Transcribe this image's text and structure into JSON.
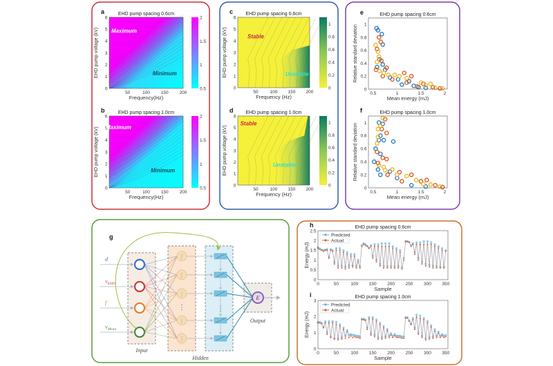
{
  "colors": {
    "frame_ab": "#c8303a",
    "frame_cd": "#2f5fa8",
    "frame_ef": "#7a3fa0",
    "frame_g": "#5a9a3a",
    "frame_hi": "#c8702a",
    "series_blue": "#1f77c0",
    "series_red": "#d95319",
    "series_yellow": "#edb120",
    "predicted": "#5ab4e0",
    "actual": "#e0603a"
  },
  "network": {
    "label": "g",
    "inputs": [
      {
        "symbol": "d",
        "sub": "",
        "color": "#3a6fc8"
      },
      {
        "symbol": "v",
        "sub": "EHD",
        "color": "#c83a3a"
      },
      {
        "symbol": "f",
        "sub": "",
        "color": "#e8802a"
      },
      {
        "symbol": "v",
        "sub": "Mean",
        "color": "#4a8a3a"
      }
    ],
    "input_label": "Input",
    "hidden_label": "Hidden",
    "output_label": "Output",
    "output_symbol": "E",
    "hidden_dots": "⋮"
  },
  "chart_data": [
    {
      "id": "a",
      "label": "a",
      "type": "contour",
      "title": "EHD pump spacing 0.6cm",
      "xlabel": "Frequency(Hz)",
      "ylabel": "EHD pump voltage (kV)",
      "xlim": [
        0,
        200
      ],
      "ylim": [
        0,
        6
      ],
      "xticks": [
        50,
        100,
        150,
        200
      ],
      "yticks": [
        0,
        1,
        2,
        3,
        4,
        5,
        6
      ],
      "colorbar": {
        "range": [
          0.5,
          2
        ],
        "ticks": [
          0.5,
          1,
          1.5,
          2
        ],
        "colors": [
          "#00ffff",
          "#ff00ff"
        ]
      },
      "annotations": [
        {
          "text": "Maximum",
          "x": 40,
          "y": 4.7,
          "color": "#ffffff"
        },
        {
          "text": "Minimum",
          "x": 150,
          "y": 1.1,
          "color": "#1a4a5a"
        }
      ]
    },
    {
      "id": "b",
      "label": "b",
      "type": "contour",
      "title": "EHD pump spacing 1.0cm",
      "xlabel": "Frequency(Hz)",
      "ylabel": "EHD pump voltage (kV)",
      "xlim": [
        0,
        200
      ],
      "ylim": [
        0,
        6
      ],
      "xticks": [
        50,
        100,
        150,
        200
      ],
      "yticks": [
        0,
        1,
        2,
        3,
        4,
        5,
        6
      ],
      "colorbar": {
        "range": [
          0.5,
          2
        ],
        "ticks": [
          0.5,
          1,
          1.5,
          2
        ],
        "colors": [
          "#00ffff",
          "#ff00ff"
        ]
      },
      "annotations": [
        {
          "text": "Maximum",
          "x": 25,
          "y": 4.9,
          "color": "#ffffff"
        },
        {
          "text": "Minimum",
          "x": 145,
          "y": 1.3,
          "color": "#1a4a5a"
        }
      ]
    },
    {
      "id": "c",
      "label": "c",
      "type": "contour",
      "title": "EHD pump spacing 0.6cm",
      "xlabel": "Frequency (Hz)",
      "ylabel": "EHD pump voltage (kV)",
      "xlim": [
        0,
        200
      ],
      "ylim": [
        0,
        6
      ],
      "xticks": [
        50,
        100,
        150,
        200
      ],
      "yticks": [
        0,
        1,
        2,
        3,
        4,
        5,
        6
      ],
      "colorbar": {
        "range": [
          0,
          1.1
        ],
        "ticks": [
          0,
          0.2,
          0.4,
          0.6,
          0.8,
          1
        ],
        "colors": [
          "#f5f03a",
          "#0b7a5e"
        ]
      },
      "annotations": [
        {
          "text": "Stable",
          "x": 50,
          "y": 4.2,
          "color": "#c8283a"
        },
        {
          "text": "Unstable",
          "x": 165,
          "y": 1.0,
          "color": "#30e0d0"
        }
      ]
    },
    {
      "id": "d",
      "label": "d",
      "type": "contour",
      "title": "EHD pump spacing 1.0cm",
      "xlabel": "Frequency (Hz)",
      "ylabel": "EHD pump voltage (kV)",
      "xlim": [
        0,
        200
      ],
      "ylim": [
        0,
        6
      ],
      "xticks": [
        50,
        100,
        150,
        200
      ],
      "yticks": [
        0,
        1,
        2,
        3,
        4,
        5,
        6
      ],
      "colorbar": {
        "range": [
          0,
          1.1
        ],
        "ticks": [
          0,
          0.2,
          0.4,
          0.6,
          0.8,
          1
        ],
        "colors": [
          "#f5f03a",
          "#0b7a5e"
        ]
      },
      "annotations": [
        {
          "text": "Stable",
          "x": 30,
          "y": 5.2,
          "color": "#c8283a"
        },
        {
          "text": "Unstable",
          "x": 130,
          "y": 1.6,
          "color": "#30e0d0"
        }
      ]
    },
    {
      "id": "e",
      "label": "e",
      "type": "scatter",
      "title": "EHD pump spacing 0.6cm",
      "xlabel": "Mean energy (mJ)",
      "ylabel": "Relative standard deviation",
      "xlim": [
        0.4,
        2.05
      ],
      "ylim": [
        0,
        1.1
      ],
      "xticks": [
        0.5,
        1,
        1.5,
        2
      ],
      "yticks": [
        0,
        0.2,
        0.4,
        0.6,
        0.8,
        1
      ],
      "series": [
        {
          "color": "#1f77c0",
          "points": [
            [
              0.57,
              0.94
            ],
            [
              0.6,
              0.91
            ],
            [
              0.68,
              0.85
            ],
            [
              0.7,
              0.69
            ],
            [
              0.63,
              0.46
            ],
            [
              0.7,
              0.38
            ],
            [
              0.58,
              0.34
            ],
            [
              0.75,
              0.3
            ],
            [
              0.85,
              0.18
            ],
            [
              1.02,
              0.15
            ],
            [
              1.1,
              0.07
            ],
            [
              1.25,
              0.12
            ],
            [
              1.35,
              0.05
            ],
            [
              1.45,
              0.03
            ],
            [
              1.6,
              0.02
            ]
          ]
        },
        {
          "color": "#d95319",
          "points": [
            [
              0.62,
              0.8
            ],
            [
              0.66,
              0.73
            ],
            [
              0.58,
              0.62
            ],
            [
              0.67,
              0.44
            ],
            [
              0.56,
              0.3
            ],
            [
              0.7,
              0.2
            ],
            [
              0.78,
              0.33
            ],
            [
              0.9,
              0.15
            ],
            [
              1.15,
              0.25
            ],
            [
              1.2,
              0.1
            ],
            [
              1.3,
              0.2
            ],
            [
              1.42,
              0.04
            ],
            [
              1.55,
              0.08
            ],
            [
              1.75,
              0.03
            ],
            [
              1.9,
              0.01
            ]
          ]
        },
        {
          "color": "#edb120",
          "points": [
            [
              0.55,
              0.68
            ],
            [
              0.6,
              0.58
            ],
            [
              0.62,
              0.5
            ],
            [
              0.58,
              0.42
            ],
            [
              0.63,
              0.28
            ],
            [
              0.72,
              0.25
            ],
            [
              0.82,
              0.22
            ],
            [
              0.95,
              0.22
            ],
            [
              1.05,
              0.2
            ],
            [
              1.2,
              0.17
            ],
            [
              1.5,
              0.1
            ],
            [
              1.6,
              0.06
            ],
            [
              1.7,
              0.08
            ],
            [
              1.8,
              0.02
            ],
            [
              1.95,
              0.01
            ]
          ]
        }
      ]
    },
    {
      "id": "f",
      "label": "f",
      "type": "scatter",
      "title": "EHD pump spacing 1.0cm",
      "xlabel": "Mean energy (mJ)",
      "ylabel": "Relative standard deviation",
      "xlim": [
        0.4,
        2.05
      ],
      "ylim": [
        0,
        1.1
      ],
      "xticks": [
        0.5,
        1,
        1.5,
        2
      ],
      "yticks": [
        0,
        0.2,
        0.4,
        0.6,
        0.8,
        1
      ],
      "series": [
        {
          "color": "#1f77c0",
          "points": [
            [
              0.62,
              1.0
            ],
            [
              0.7,
              0.98
            ],
            [
              0.65,
              0.8
            ],
            [
              0.62,
              0.73
            ],
            [
              0.72,
              0.73
            ],
            [
              0.92,
              0.71
            ],
            [
              0.55,
              0.6
            ],
            [
              0.65,
              0.52
            ],
            [
              0.52,
              0.4
            ],
            [
              0.6,
              0.28
            ],
            [
              0.65,
              0.2
            ],
            [
              0.85,
              0.25
            ],
            [
              1.0,
              0.15
            ],
            [
              1.3,
              0.04
            ],
            [
              1.6,
              0.02
            ]
          ]
        },
        {
          "color": "#d95319",
          "points": [
            [
              0.75,
              1.05
            ],
            [
              0.68,
              0.9
            ],
            [
              0.78,
              0.84
            ],
            [
              0.58,
              0.55
            ],
            [
              0.7,
              0.46
            ],
            [
              0.78,
              0.44
            ],
            [
              0.6,
              0.38
            ],
            [
              0.8,
              0.2
            ],
            [
              1.05,
              0.24
            ],
            [
              1.1,
              0.1
            ],
            [
              1.3,
              0.2
            ],
            [
              1.5,
              0.1
            ],
            [
              1.62,
              0.12
            ],
            [
              1.8,
              0.04
            ],
            [
              1.95,
              0.01
            ]
          ]
        },
        {
          "color": "#edb120",
          "points": [
            [
              0.7,
              1.07
            ],
            [
              0.65,
              0.95
            ],
            [
              0.6,
              0.9
            ],
            [
              0.58,
              0.68
            ],
            [
              0.6,
              0.78
            ],
            [
              0.62,
              0.35
            ],
            [
              0.72,
              0.32
            ],
            [
              0.75,
              0.27
            ],
            [
              0.9,
              0.28
            ],
            [
              1.0,
              0.2
            ],
            [
              1.2,
              0.18
            ],
            [
              1.4,
              0.12
            ],
            [
              1.55,
              0.06
            ],
            [
              1.7,
              0.05
            ],
            [
              1.9,
              0.02
            ]
          ]
        }
      ]
    },
    {
      "id": "h",
      "label": "h",
      "type": "line",
      "title": "EHD pump spacing 0.6cm",
      "xlabel": "Sample",
      "ylabel": "Energy (mJ)",
      "xlim": [
        0,
        356
      ],
      "ylim": [
        0,
        2.5
      ],
      "xticks": [
        0,
        50,
        100,
        150,
        200,
        250,
        300,
        350
      ],
      "yticks": [
        0,
        0.5,
        1,
        1.5,
        2,
        2.5
      ],
      "legend": {
        "position": "top-left"
      },
      "x_step": 5,
      "series": [
        {
          "name": "Predicted",
          "color": "#5ab4e0",
          "values": [
            1.65,
            1.58,
            1.52,
            1.5,
            1.52,
            1.55,
            1.15,
            1.55,
            1.5,
            0.9,
            1.6,
            0.7,
            1.6,
            0.7,
            1.5,
            0.65,
            1.4,
            0.7,
            1.3,
            0.72,
            1.3,
            0.7,
            1.0,
            0.68,
            1.75,
            1.85,
            1.8,
            1.72,
            1.62,
            1.75,
            1.2,
            1.8,
            1.0,
            1.8,
            0.8,
            1.85,
            0.7,
            1.85,
            0.68,
            1.85,
            0.68,
            1.7,
            0.68,
            1.6,
            0.68,
            1.5,
            0.62,
            1.1,
            1.95,
            1.95,
            1.92,
            1.75,
            1.85,
            1.4,
            1.9,
            1.1,
            1.9,
            0.9,
            1.95,
            0.8,
            1.95,
            0.75,
            1.9,
            0.7,
            1.8,
            0.68,
            1.7,
            0.65,
            1.6,
            0.65,
            1.5
          ]
        },
        {
          "name": "Actual",
          "color": "#e0603a",
          "values": [
            1.6,
            1.55,
            1.5,
            1.45,
            1.5,
            1.5,
            1.1,
            1.5,
            1.45,
            0.8,
            1.5,
            0.6,
            1.5,
            0.6,
            1.4,
            0.55,
            1.3,
            0.6,
            1.2,
            0.65,
            1.2,
            0.6,
            0.9,
            0.6,
            1.7,
            1.8,
            1.75,
            1.7,
            1.6,
            1.7,
            1.1,
            1.7,
            0.9,
            1.7,
            0.7,
            1.7,
            0.6,
            1.7,
            0.6,
            1.7,
            0.6,
            1.6,
            0.6,
            1.5,
            0.6,
            1.4,
            0.55,
            1.0,
            1.95,
            1.95,
            1.9,
            1.7,
            1.8,
            1.3,
            1.8,
            1.0,
            1.8,
            0.8,
            1.8,
            0.7,
            1.8,
            0.65,
            1.8,
            0.6,
            1.7,
            0.6,
            1.6,
            0.6,
            1.5,
            0.6,
            1.45
          ]
        }
      ]
    },
    {
      "id": "i",
      "label": "i",
      "type": "line",
      "title": "EHD pump spacing 1.0cm",
      "xlabel": "Sample",
      "ylabel": "Energy (mJ)",
      "xlim": [
        0,
        356
      ],
      "ylim": [
        0,
        3
      ],
      "xticks": [
        0,
        50,
        100,
        150,
        200,
        250,
        300,
        350
      ],
      "yticks": [
        0,
        1,
        2,
        3
      ],
      "legend": {
        "position": "top-left"
      },
      "x_step": 5,
      "series": [
        {
          "name": "Predicted",
          "color": "#5ab4e0",
          "values": [
            1.65,
            1.65,
            1.6,
            1.35,
            1.7,
            1.0,
            1.7,
            0.75,
            1.7,
            0.65,
            1.65,
            0.65,
            1.5,
            0.7,
            1.3,
            0.8,
            1.15,
            0.85,
            0.9,
            0.85,
            0.85,
            0.8,
            0.8,
            0.75,
            1.85,
            1.85,
            1.8,
            1.3,
            1.95,
            0.95,
            1.95,
            0.85,
            1.8,
            0.7,
            1.6,
            0.7,
            1.4,
            0.75,
            1.2,
            0.8,
            0.95,
            0.8,
            0.9,
            0.8,
            0.8,
            0.8,
            0.75,
            0.75,
            1.95,
            1.95,
            1.75,
            1.55,
            1.9,
            1.3,
            2.1,
            1.0,
            2.05,
            0.8,
            1.9,
            0.65,
            1.7,
            0.7,
            1.45,
            0.75,
            1.2,
            0.8,
            1.05,
            0.8,
            0.9,
            0.8,
            0.85
          ]
        },
        {
          "name": "Actual",
          "color": "#e0603a",
          "values": [
            1.6,
            1.6,
            1.55,
            1.3,
            1.6,
            0.9,
            1.6,
            0.7,
            1.6,
            0.6,
            1.5,
            0.55,
            1.4,
            0.6,
            1.2,
            0.65,
            1.05,
            0.7,
            0.8,
            0.7,
            0.75,
            0.7,
            0.7,
            0.65,
            1.8,
            1.8,
            1.75,
            1.2,
            1.85,
            0.85,
            1.85,
            0.75,
            1.7,
            0.6,
            1.5,
            0.6,
            1.3,
            0.65,
            1.1,
            0.7,
            0.85,
            0.7,
            0.8,
            0.7,
            0.7,
            0.7,
            0.65,
            0.65,
            1.9,
            1.9,
            1.7,
            1.5,
            1.8,
            1.2,
            1.95,
            0.9,
            1.9,
            0.7,
            1.8,
            0.55,
            1.6,
            0.6,
            1.35,
            0.65,
            1.1,
            0.7,
            0.95,
            0.7,
            0.8,
            0.7,
            0.75
          ]
        }
      ]
    }
  ]
}
